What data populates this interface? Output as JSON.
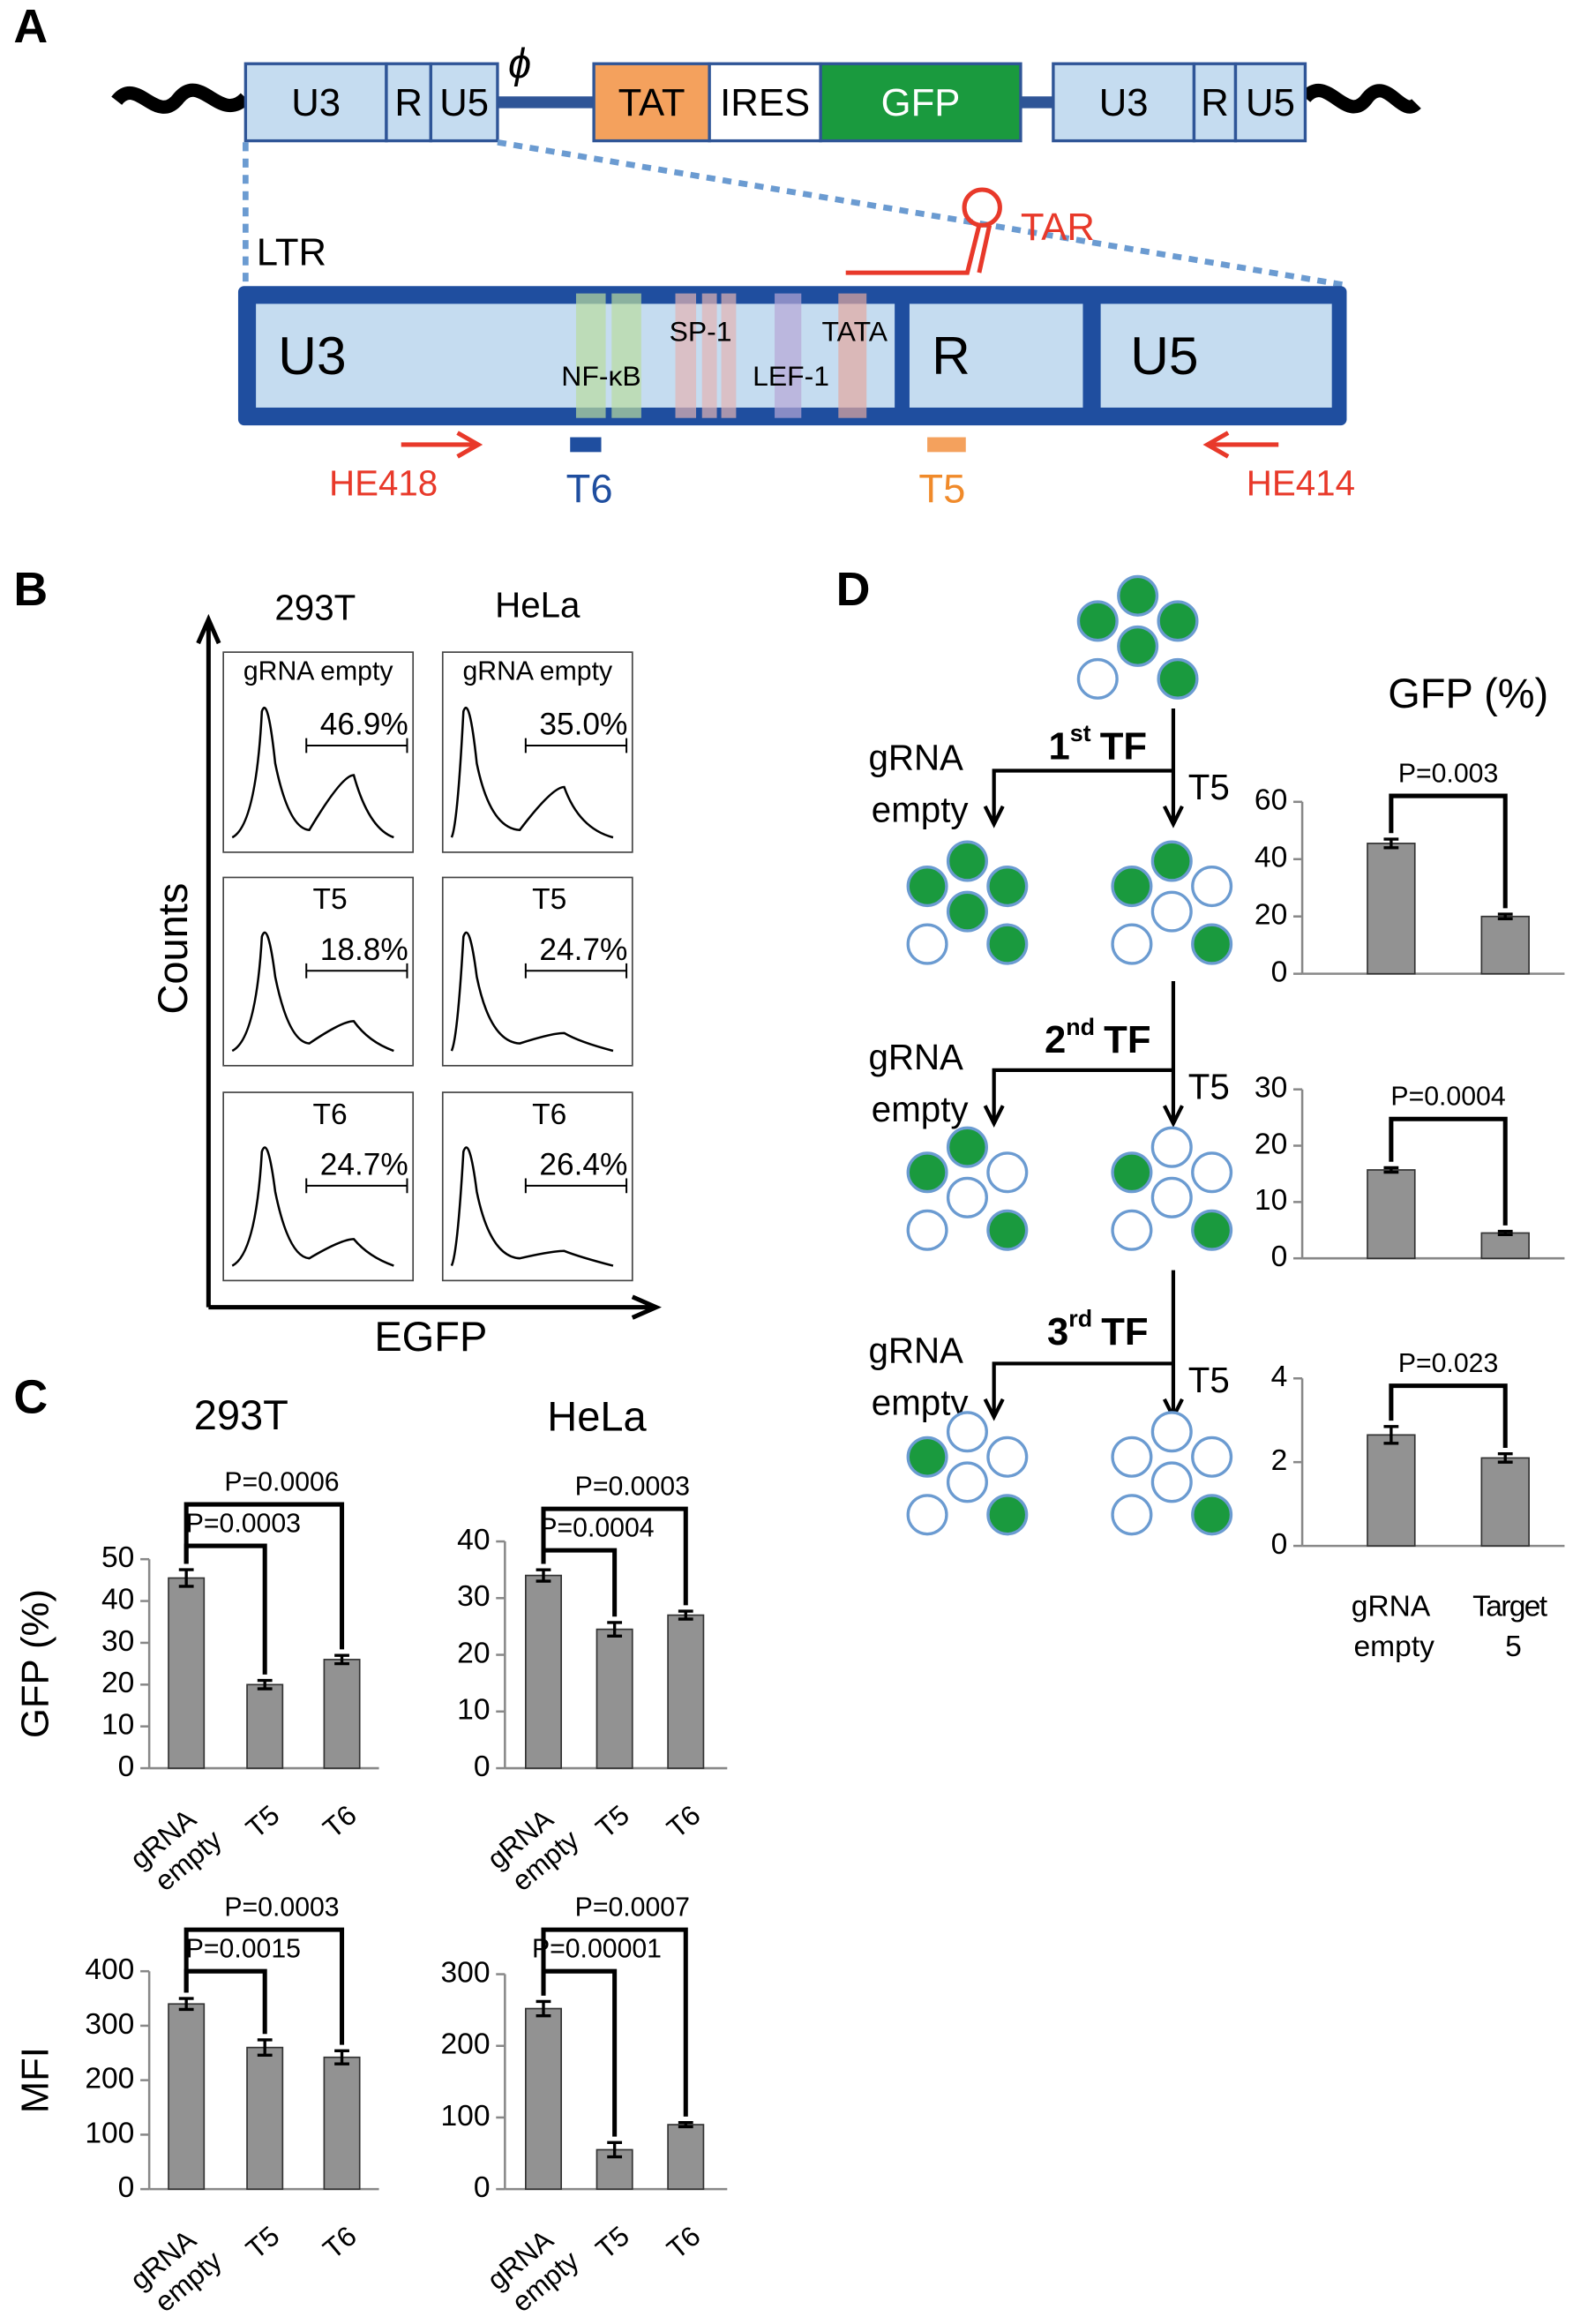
{
  "panel_labels": [
    "A",
    "B",
    "C",
    "D"
  ],
  "construct": {
    "segments": [
      "U3",
      "R",
      "U5",
      "TAT",
      "IRES",
      "GFP",
      "U3",
      "R",
      "U5"
    ],
    "psi": "ϕ"
  },
  "ltr": {
    "title": "LTR",
    "tar": "TAR",
    "regions": [
      "U3",
      "R",
      "U5"
    ],
    "sites": [
      "NF-κB",
      "SP-1",
      "LEF-1",
      "TATA"
    ],
    "primers": [
      "HE418",
      "HE414"
    ],
    "targets": [
      "T6",
      "T5"
    ]
  },
  "flow": {
    "lines": [
      "293T",
      "HeLa"
    ],
    "y_label": "Counts",
    "x_label": "EGFP",
    "rows": [
      "gRNA empty",
      "T5",
      "T6"
    ],
    "gates": [
      [
        "46.9%",
        "35.0%"
      ],
      [
        "18.8%",
        "24.7%"
      ],
      [
        "24.7%",
        "26.4%"
      ]
    ]
  },
  "transfection": {
    "rounds": [
      {
        "ordinal": "1",
        "suffix": "st",
        "label": "TF",
        "left": "gRNA empty",
        "right": "T5"
      },
      {
        "ordinal": "2",
        "suffix": "nd",
        "label": "TF",
        "left": "gRNA empty",
        "right": "T5"
      },
      {
        "ordinal": "3",
        "suffix": "rd",
        "label": "TF",
        "left": "gRNA empty",
        "right": "T5"
      }
    ]
  },
  "chart_data": [
    {
      "type": "bar",
      "title": "293T",
      "y_label": "GFP (%)",
      "categories": [
        "gRNA empty",
        "T5",
        "T6"
      ],
      "values": [
        45.5,
        20,
        26
      ],
      "errors": [
        2,
        1,
        1
      ],
      "color": "#929292",
      "ylim": [
        0,
        50
      ],
      "yticks": [
        0,
        10,
        20,
        30,
        40,
        50
      ],
      "p_values": [
        "P=0.0006",
        "P=0.0003"
      ]
    },
    {
      "type": "bar",
      "title": "HeLa",
      "categories": [
        "gRNA empty",
        "T5",
        "T6"
      ],
      "values": [
        34,
        24.5,
        27
      ],
      "errors": [
        1,
        1.2,
        0.7
      ],
      "color": "#929292",
      "ylim": [
        0,
        40
      ],
      "yticks": [
        0,
        10,
        20,
        30,
        40
      ],
      "p_values": [
        "P=0.0003",
        "P=0.0004"
      ]
    },
    {
      "type": "bar",
      "y_label": "MFI",
      "categories": [
        "gRNA empty",
        "T5",
        "T6"
      ],
      "values": [
        340,
        260,
        242
      ],
      "errors": [
        10,
        14,
        12
      ],
      "color": "#929292",
      "ylim": [
        0,
        400
      ],
      "yticks": [
        0,
        100,
        200,
        300,
        400
      ],
      "p_values": [
        "P=0.0003",
        "P=0.0015"
      ]
    },
    {
      "type": "bar",
      "categories": [
        "gRNA empty",
        "T5",
        "T6"
      ],
      "values": [
        252,
        55,
        90
      ],
      "errors": [
        10,
        10,
        3
      ],
      "color": "#929292",
      "ylim": [
        0,
        300
      ],
      "yticks": [
        0,
        100,
        200,
        300
      ],
      "p_values": [
        "P=0.0007",
        "P=0.00001"
      ]
    },
    {
      "type": "bar",
      "title": "GFP (%)",
      "categories": [
        null,
        null
      ],
      "values": [
        45.5,
        20
      ],
      "errors": [
        1.5,
        0.8
      ],
      "color": "#929292",
      "ylim": [
        0,
        60
      ],
      "yticks": [
        0,
        20,
        40,
        60
      ],
      "p_values": [
        "P=0.003"
      ]
    },
    {
      "type": "bar",
      "categories": [
        null,
        null
      ],
      "values": [
        15.7,
        4.5
      ],
      "errors": [
        0.4,
        0.3
      ],
      "color": "#929292",
      "ylim": [
        0,
        30
      ],
      "yticks": [
        0,
        10,
        20,
        30
      ],
      "p_values": [
        "P=0.0004"
      ]
    },
    {
      "type": "bar",
      "categories": [
        "gRNA empty",
        "Target 5"
      ],
      "values": [
        2.65,
        2.1
      ],
      "errors": [
        0.2,
        0.1
      ],
      "color": "#929292",
      "ylim": [
        0,
        4
      ],
      "yticks": [
        0,
        2,
        4
      ],
      "p_values": [
        "P=0.023"
      ]
    }
  ]
}
